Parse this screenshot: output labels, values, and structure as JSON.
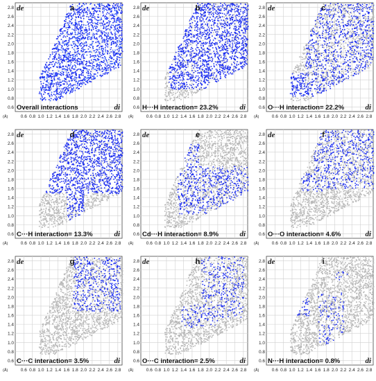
{
  "figure": {
    "axis_labels": {
      "de": "de",
      "di": "di",
      "unit": "(Å)"
    },
    "y_ticks": [
      "2.8",
      "2.6",
      "2.4",
      "2.2",
      "2.0",
      "1.8",
      "1.6",
      "1.4",
      "1.2",
      "1.0",
      "0.8",
      "0.6"
    ],
    "x_ticks": [
      "0.6",
      "0.8",
      "1.0",
      "1.2",
      "1.4",
      "1.6",
      "1.8",
      "2.0",
      "2.2",
      "2.4",
      "2.6",
      "2.8"
    ],
    "colors": {
      "highlight": "#1a2cf0",
      "highlight_light": "#3b6cff",
      "background_points": "#b8b8b8",
      "grid": "#cfcfcf"
    }
  },
  "chart_data": [
    {
      "type": "scatter",
      "letter": "a",
      "caption": "Overall interactions",
      "percent": null,
      "xlim": [
        0.4,
        2.9
      ],
      "ylim": [
        0.5,
        2.9
      ],
      "highlight": "full",
      "regions": []
    },
    {
      "type": "scatter",
      "letter": "b",
      "caption": "H···H interaction= 23.2%",
      "percent": 23.2,
      "xlim": [
        0.4,
        2.9
      ],
      "ylim": [
        0.5,
        2.9
      ],
      "highlight": "regions",
      "regions": [
        [
          1.05,
          1.0,
          2.9,
          2.9,
          0.9
        ]
      ]
    },
    {
      "type": "scatter",
      "letter": "c",
      "caption": "O···H interaction= 22.2%",
      "percent": 22.2,
      "xlim": [
        0.4,
        2.9
      ],
      "ylim": [
        0.5,
        2.9
      ],
      "highlight": "regions",
      "regions": [
        [
          1.3,
          1.1,
          2.9,
          2.9,
          0.5
        ],
        [
          0.95,
          0.85,
          1.5,
          1.35,
          0.9
        ],
        [
          1.5,
          0.8,
          1.95,
          1.3,
          0.7
        ]
      ]
    },
    {
      "type": "scatter",
      "letter": "d",
      "caption": "C···H interaction= 13.3%",
      "percent": 13.3,
      "xlim": [
        0.4,
        2.9
      ],
      "ylim": [
        0.5,
        2.9
      ],
      "highlight": "regions",
      "regions": [
        [
          1.1,
          1.5,
          2.9,
          2.9,
          0.9
        ],
        [
          1.6,
          0.8,
          2.0,
          1.6,
          0.8
        ]
      ]
    },
    {
      "type": "scatter",
      "letter": "e",
      "caption": "Cd···H interaction= 8.9%",
      "percent": 8.9,
      "xlim": [
        0.4,
        2.9
      ],
      "ylim": [
        0.5,
        2.9
      ],
      "highlight": "regions",
      "regions": [
        [
          1.25,
          1.05,
          1.75,
          2.6,
          0.6
        ],
        [
          1.5,
          1.05,
          2.9,
          2.1,
          0.5
        ]
      ]
    },
    {
      "type": "scatter",
      "letter": "f",
      "caption": "O···O interaction= 4.6%",
      "percent": 4.6,
      "xlim": [
        0.4,
        2.9
      ],
      "ylim": [
        0.5,
        2.9
      ],
      "highlight": "regions",
      "regions": [
        [
          1.5,
          1.6,
          2.9,
          2.9,
          0.5
        ],
        [
          1.2,
          1.55,
          1.7,
          1.95,
          0.6
        ]
      ]
    },
    {
      "type": "scatter",
      "letter": "g",
      "caption": "C···C interaction= 3.5%",
      "percent": 3.5,
      "xlim": [
        0.4,
        2.9
      ],
      "ylim": [
        0.5,
        2.9
      ],
      "highlight": "regions",
      "regions": [
        [
          1.75,
          1.7,
          2.85,
          2.9,
          0.5
        ]
      ]
    },
    {
      "type": "scatter",
      "letter": "h",
      "caption": "O···C interaction= 2.5%",
      "percent": 2.5,
      "xlim": [
        0.4,
        2.9
      ],
      "ylim": [
        0.5,
        2.9
      ],
      "highlight": "regions",
      "regions": [
        [
          1.8,
          1.55,
          2.8,
          2.9,
          0.4
        ],
        [
          1.35,
          1.35,
          2.2,
          1.85,
          0.4
        ]
      ]
    },
    {
      "type": "scatter",
      "letter": "i",
      "caption": "N···H interaction= 0.8%",
      "percent": 0.8,
      "xlim": [
        0.4,
        2.9
      ],
      "ylim": [
        0.5,
        2.9
      ],
      "highlight": "regions",
      "regions": [
        [
          1.05,
          1.6,
          1.4,
          2.0,
          0.6
        ],
        [
          1.6,
          0.85,
          2.2,
          2.1,
          0.35
        ],
        [
          2.0,
          2.3,
          2.3,
          2.6,
          0.3
        ]
      ]
    }
  ]
}
